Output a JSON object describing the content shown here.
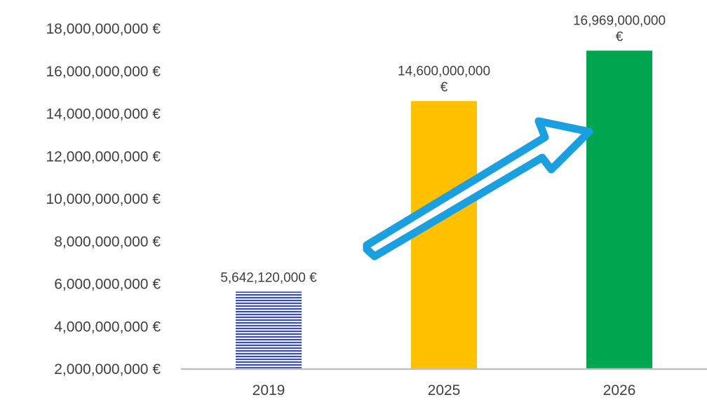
{
  "chart_data": {
    "type": "bar",
    "title": "",
    "xlabel": "",
    "ylabel": "",
    "categories": [
      "2019",
      "2025",
      "2026"
    ],
    "values": [
      5642120000,
      14600000000,
      16969000000
    ],
    "data_labels": [
      [
        "5,642,120,000 €"
      ],
      [
        "14,600,000,000",
        "€"
      ],
      [
        "16,969,000,000",
        "€"
      ]
    ],
    "ylim": [
      2000000000,
      18000000000
    ],
    "y_ticks": [
      2000000000,
      4000000000,
      6000000000,
      8000000000,
      10000000000,
      12000000000,
      14000000000,
      16000000000,
      18000000000
    ],
    "y_tick_labels": [
      "2,000,000,000 €",
      "4,000,000,000 €",
      "6,000,000,000 €",
      "8,000,000,000 €",
      "10,000,000,000 €",
      "12,000,000,000 €",
      "14,000,000,000 €",
      "16,000,000,000 €",
      "18,000,000,000 €"
    ],
    "bar_styles": [
      "horizontal-stripes",
      "solid",
      "solid"
    ],
    "bar_colors": [
      "#3b4fa8",
      "#ffc000",
      "#00a550"
    ],
    "axis_color": "#bfbfbf",
    "arrow_color": "#1a9fe0",
    "annotation": "upward-arrow",
    "grid": false,
    "legend": "none"
  }
}
